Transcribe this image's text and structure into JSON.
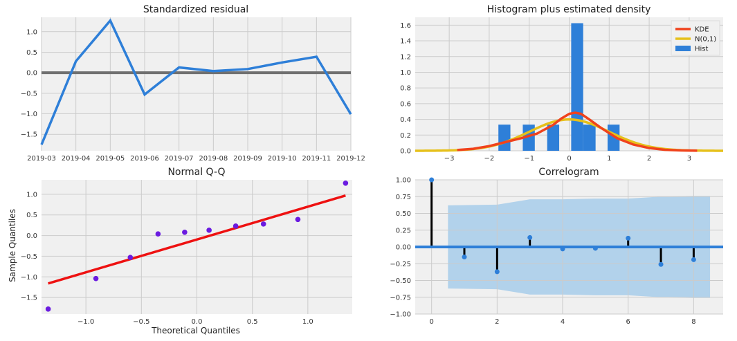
{
  "chart_data": [
    {
      "id": "resid",
      "type": "line",
      "title": "Standardized residual",
      "xlabel": "",
      "ylabel": "",
      "x": [
        "2019-03",
        "2019-04",
        "2019-05",
        "2019-06",
        "2019-07",
        "2019-08",
        "2019-09",
        "2019-10",
        "2019-11",
        "2019-12"
      ],
      "series": [
        {
          "values": [
            -1.75,
            0.28,
            1.27,
            -0.53,
            0.13,
            0.04,
            0.09,
            0.25,
            0.39,
            -1.01
          ]
        }
      ],
      "hline": 0.0,
      "ylim": [
        -1.9,
        1.35
      ],
      "yticks": [
        "1.0",
        "0.5",
        "0.0",
        "−0.5",
        "−1.0",
        "−1.5"
      ],
      "ytick_values": [
        1.0,
        0.5,
        0.0,
        -0.5,
        -1.0,
        -1.5
      ],
      "grid": true,
      "colors": {
        "series": "#2e7fd8",
        "zero": "#707070"
      }
    },
    {
      "id": "hist",
      "type": "bar",
      "title": "Histogram plus estimated density",
      "xlabel": "",
      "ylabel": "",
      "bars": [
        {
          "x0": -1.77,
          "x1": -1.47,
          "h": 0.333
        },
        {
          "x0": -1.16,
          "x1": -0.86,
          "h": 0.333
        },
        {
          "x0": -0.55,
          "x1": -0.25,
          "h": 0.333
        },
        {
          "x0": 0.05,
          "x1": 0.35,
          "h": 1.625
        },
        {
          "x0": 0.35,
          "x1": 0.66,
          "h": 0.333
        },
        {
          "x0": 0.96,
          "x1": 1.26,
          "h": 0.333
        }
      ],
      "kde": {
        "x": [
          -2.8,
          -2.4,
          -2.0,
          -1.6,
          -1.2,
          -0.8,
          -0.4,
          -0.2,
          0.0,
          0.15,
          0.3,
          0.5,
          0.8,
          1.2,
          1.6,
          2.0,
          2.4,
          2.8,
          3.2
        ],
        "y": [
          0.01,
          0.025,
          0.06,
          0.11,
          0.16,
          0.22,
          0.33,
          0.41,
          0.47,
          0.485,
          0.47,
          0.4,
          0.29,
          0.16,
          0.08,
          0.035,
          0.012,
          0.004,
          0.001
        ]
      },
      "normal": {
        "mean": 0,
        "sd": 1
      },
      "xlim": [
        -3.85,
        3.85
      ],
      "ylim": [
        0,
        1.7
      ],
      "xticks": [
        "−3",
        "−2",
        "−1",
        "0",
        "1",
        "2",
        "3"
      ],
      "xtick_values": [
        -3,
        -2,
        -1,
        0,
        1,
        2,
        3
      ],
      "yticks": [
        "0.0",
        "0.2",
        "0.4",
        "0.6",
        "0.8",
        "1.0",
        "1.2",
        "1.4",
        "1.6"
      ],
      "ytick_values": [
        0,
        0.2,
        0.4,
        0.6,
        0.8,
        1.0,
        1.2,
        1.4,
        1.6
      ],
      "legend": [
        {
          "name": "KDE",
          "color": "#f0421c"
        },
        {
          "name": "N(0,1)",
          "color": "#e6c01a"
        },
        {
          "name": "Hist",
          "color": "#2e7fd8"
        }
      ],
      "legend_position": "top-right",
      "grid": true
    },
    {
      "id": "qq",
      "type": "scatter",
      "title": "Normal Q-Q",
      "xlabel": "Theoretical Quantiles",
      "ylabel": "Sample Quantiles",
      "points": [
        {
          "x": -1.34,
          "y": -1.78
        },
        {
          "x": -0.91,
          "y": -1.04
        },
        {
          "x": -0.6,
          "y": -0.53
        },
        {
          "x": -0.35,
          "y": 0.04
        },
        {
          "x": -0.11,
          "y": 0.08
        },
        {
          "x": 0.11,
          "y": 0.13
        },
        {
          "x": 0.35,
          "y": 0.23
        },
        {
          "x": 0.6,
          "y": 0.28
        },
        {
          "x": 0.91,
          "y": 0.39
        },
        {
          "x": 1.34,
          "y": 1.27
        }
      ],
      "reference_line": {
        "x": [
          -1.34,
          1.34
        ],
        "y": [
          -1.16,
          0.97
        ]
      },
      "xlim": [
        -1.4,
        1.4
      ],
      "ylim": [
        -1.9,
        1.35
      ],
      "xticks": [
        "−1.0",
        "−0.5",
        "0.0",
        "0.5",
        "1.0"
      ],
      "xtick_values": [
        -1.0,
        -0.5,
        0.0,
        0.5,
        1.0
      ],
      "yticks": [
        "1.0",
        "0.5",
        "0.0",
        "−0.5",
        "−1.0",
        "−1.5"
      ],
      "ytick_values": [
        1.0,
        0.5,
        0.0,
        -0.5,
        -1.0,
        -1.5
      ],
      "grid": true,
      "colors": {
        "points": "#6a1be0",
        "line": "#ee1111"
      }
    },
    {
      "id": "acf",
      "type": "scatter",
      "title": "Correlogram",
      "xlabel": "",
      "ylabel": "",
      "lags": [
        0,
        1,
        2,
        3,
        4,
        5,
        6,
        7,
        8
      ],
      "values": [
        1.0,
        -0.15,
        -0.37,
        0.14,
        -0.03,
        -0.02,
        0.13,
        -0.26,
        -0.19
      ],
      "conf_band": {
        "x": [
          0.5,
          2,
          3,
          4,
          5,
          6,
          7,
          8,
          8.5
        ],
        "upper": [
          0.62,
          0.63,
          0.71,
          0.71,
          0.72,
          0.72,
          0.75,
          0.76,
          0.76
        ],
        "lower": [
          -0.62,
          -0.63,
          -0.71,
          -0.71,
          -0.72,
          -0.72,
          -0.75,
          -0.76,
          -0.76
        ]
      },
      "xlim": [
        -0.5,
        8.9
      ],
      "ylim": [
        -1.0,
        1.0
      ],
      "xticks": [
        "0",
        "2",
        "4",
        "6",
        "8"
      ],
      "xtick_values": [
        0,
        2,
        4,
        6,
        8
      ],
      "yticks": [
        "1.00",
        "0.75",
        "0.50",
        "0.25",
        "0.00",
        "−0.25",
        "−0.50",
        "−0.75",
        "−1.00"
      ],
      "ytick_values": [
        1.0,
        0.75,
        0.5,
        0.25,
        0.0,
        -0.25,
        -0.5,
        -0.75,
        -1.0
      ],
      "grid": true,
      "colors": {
        "points": "#2e7fd8",
        "stems": "#000000",
        "band": "#9ec8ea",
        "zero": "#2e7fd8"
      }
    }
  ]
}
